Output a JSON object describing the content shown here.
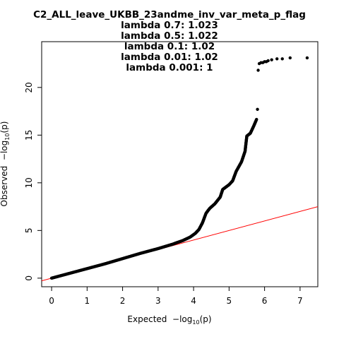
{
  "chart_data": {
    "type": "scatter",
    "title_lines": [
      "C2_ALL_leave_UKBB_23andme_inv_var_meta_p_flag",
      "lambda 0.7: 1.023",
      "lambda 0.5: 1.022",
      "lambda 0.1: 1.02",
      "lambda 0.01: 1.02",
      "lambda 0.001: 1"
    ],
    "xlabel": {
      "main": "Expected",
      "minus_log": "−log",
      "sub": "10",
      "p": "(p)"
    },
    "ylabel": {
      "main": "Observed",
      "minus_log": "−log",
      "sub": "10",
      "p": "(p)"
    },
    "xlim": [
      -0.28,
      7.5
    ],
    "ylim": [
      -0.9,
      24.8
    ],
    "x_ticks": [
      0,
      1,
      2,
      3,
      4,
      5,
      6,
      7
    ],
    "y_ticks": [
      0,
      5,
      10,
      15,
      20
    ],
    "x_tick_labels": [
      "0",
      "1",
      "2",
      "3",
      "4",
      "5",
      "6",
      "7"
    ],
    "y_tick_labels": [
      "0",
      "5",
      "10",
      "15",
      "20"
    ],
    "reference_line": {
      "slope": 1,
      "intercept": 0,
      "color": "#ff0000"
    },
    "point_color": "#000000",
    "background": "#ffffff",
    "curve": [
      [
        0,
        0
      ],
      [
        0.5,
        0.5
      ],
      [
        1,
        1.0
      ],
      [
        1.5,
        1.5
      ],
      [
        2,
        2.05
      ],
      [
        2.5,
        2.6
      ],
      [
        3,
        3.1
      ],
      [
        3.4,
        3.55
      ],
      [
        3.7,
        3.95
      ],
      [
        3.9,
        4.3
      ],
      [
        4.05,
        4.7
      ],
      [
        4.15,
        5.1
      ],
      [
        4.25,
        5.8
      ],
      [
        4.35,
        6.8
      ],
      [
        4.45,
        7.3
      ],
      [
        4.6,
        7.8
      ],
      [
        4.75,
        8.5
      ],
      [
        4.82,
        9.3
      ],
      [
        5.0,
        9.8
      ],
      [
        5.1,
        10.2
      ],
      [
        5.2,
        11.2
      ],
      [
        5.35,
        12.2
      ],
      [
        5.45,
        13.3
      ],
      [
        5.5,
        14.9
      ],
      [
        5.6,
        15.2
      ],
      [
        5.7,
        16.0
      ],
      [
        5.78,
        16.7
      ]
    ],
    "tail_points": [
      [
        5.8,
        17.7
      ],
      [
        5.82,
        21.8
      ],
      [
        5.85,
        22.5
      ],
      [
        5.9,
        22.6
      ],
      [
        5.95,
        22.6
      ],
      [
        6.0,
        22.7
      ],
      [
        6.05,
        22.7
      ],
      [
        6.1,
        22.8
      ],
      [
        6.2,
        22.9
      ],
      [
        6.35,
        23.0
      ],
      [
        6.5,
        23.0
      ],
      [
        6.72,
        23.1
      ],
      [
        7.2,
        23.1
      ]
    ]
  }
}
